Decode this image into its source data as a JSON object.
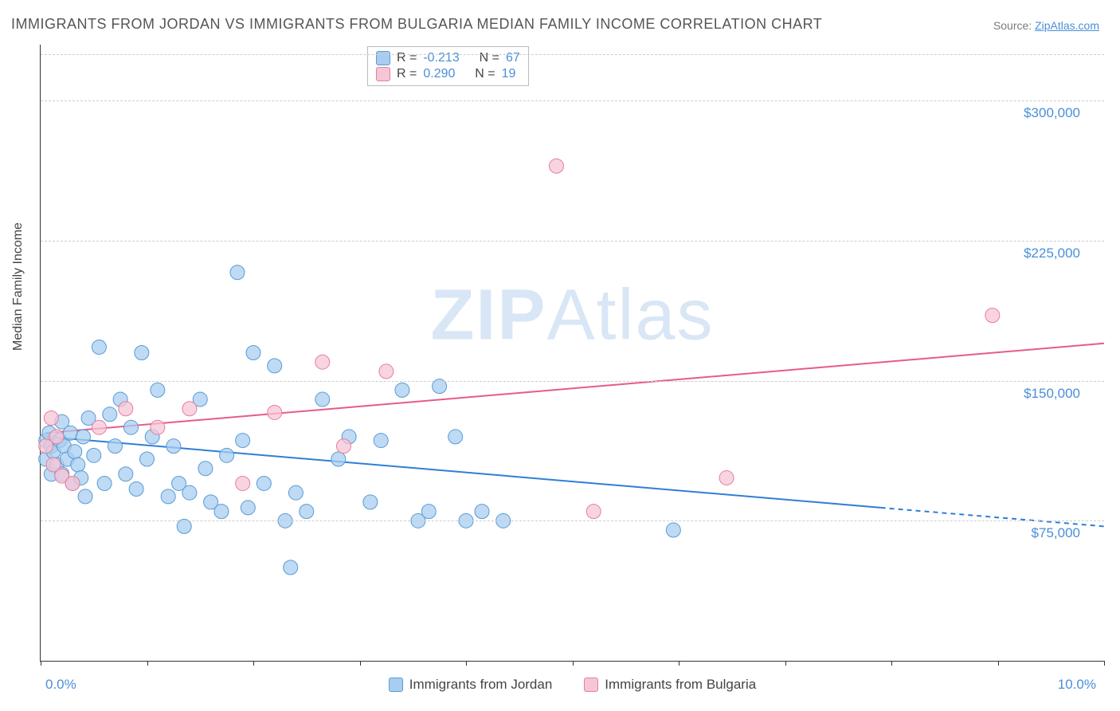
{
  "title": "IMMIGRANTS FROM JORDAN VS IMMIGRANTS FROM BULGARIA MEDIAN FAMILY INCOME CORRELATION CHART",
  "source_label": "Source: ",
  "source_link": "ZipAtlas.com",
  "y_axis_label": "Median Family Income",
  "watermark": {
    "bold": "ZIP",
    "rest": "Atlas"
  },
  "chart": {
    "type": "scatter-with-trend",
    "xlim": [
      0,
      10
    ],
    "ylim": [
      0,
      330000
    ],
    "x_ticks": [
      0,
      1,
      2,
      3,
      4,
      5,
      6,
      7,
      8,
      9,
      10
    ],
    "x_tick_labels": {
      "0": "0.0%",
      "10": "10.0%"
    },
    "y_gridlines": [
      75000,
      150000,
      225000,
      300000,
      325000
    ],
    "y_tick_labels": {
      "75000": "$75,000",
      "150000": "$150,000",
      "225000": "$225,000",
      "300000": "$300,000"
    },
    "background_color": "#ffffff",
    "grid_color": "#cccccc",
    "marker_radius": 9,
    "marker_stroke_width": 1,
    "series": [
      {
        "name": "Immigrants from Jordan",
        "fill_color": "#a8cdf0",
        "stroke_color": "#5a9bd4",
        "line_color": "#2f7ed8",
        "R": -0.213,
        "N": 67,
        "trend": {
          "x1": 0.05,
          "y1": 120000,
          "x2": 7.9,
          "y2": 82000
        },
        "trend_dash": {
          "x1": 7.9,
          "y1": 82000,
          "x2": 10.0,
          "y2": 72000
        },
        "points": [
          [
            0.05,
            118000
          ],
          [
            0.05,
            108000
          ],
          [
            0.1,
            115000
          ],
          [
            0.1,
            100000
          ],
          [
            0.08,
            122000
          ],
          [
            0.12,
            112000
          ],
          [
            0.15,
            105000
          ],
          [
            0.18,
            118000
          ],
          [
            0.2,
            128000
          ],
          [
            0.2,
            100000
          ],
          [
            0.22,
            115000
          ],
          [
            0.25,
            108000
          ],
          [
            0.28,
            122000
          ],
          [
            0.3,
            95000
          ],
          [
            0.32,
            112000
          ],
          [
            0.35,
            105000
          ],
          [
            0.38,
            98000
          ],
          [
            0.4,
            120000
          ],
          [
            0.45,
            130000
          ],
          [
            0.5,
            110000
          ],
          [
            0.55,
            168000
          ],
          [
            0.6,
            95000
          ],
          [
            0.65,
            132000
          ],
          [
            0.7,
            115000
          ],
          [
            0.75,
            140000
          ],
          [
            0.8,
            100000
          ],
          [
            0.85,
            125000
          ],
          [
            0.9,
            92000
          ],
          [
            0.95,
            165000
          ],
          [
            1.0,
            108000
          ],
          [
            1.05,
            120000
          ],
          [
            1.1,
            145000
          ],
          [
            1.2,
            88000
          ],
          [
            1.25,
            115000
          ],
          [
            1.3,
            95000
          ],
          [
            1.35,
            72000
          ],
          [
            1.4,
            90000
          ],
          [
            1.5,
            140000
          ],
          [
            1.55,
            103000
          ],
          [
            1.6,
            85000
          ],
          [
            1.7,
            80000
          ],
          [
            1.75,
            110000
          ],
          [
            1.85,
            208000
          ],
          [
            1.9,
            118000
          ],
          [
            1.95,
            82000
          ],
          [
            2.0,
            165000
          ],
          [
            2.1,
            95000
          ],
          [
            2.2,
            158000
          ],
          [
            2.3,
            75000
          ],
          [
            2.35,
            50000
          ],
          [
            2.4,
            90000
          ],
          [
            2.5,
            80000
          ],
          [
            2.65,
            140000
          ],
          [
            2.8,
            108000
          ],
          [
            2.9,
            120000
          ],
          [
            3.1,
            85000
          ],
          [
            3.2,
            118000
          ],
          [
            3.4,
            145000
          ],
          [
            3.55,
            75000
          ],
          [
            3.65,
            80000
          ],
          [
            3.75,
            147000
          ],
          [
            3.9,
            120000
          ],
          [
            4.0,
            75000
          ],
          [
            4.15,
            80000
          ],
          [
            4.35,
            75000
          ],
          [
            5.95,
            70000
          ],
          [
            0.42,
            88000
          ]
        ]
      },
      {
        "name": "Immigrants from Bulgaria",
        "fill_color": "#f5c6d5",
        "stroke_color": "#e77da0",
        "line_color": "#e75a8d",
        "R": 0.29,
        "N": 19,
        "trend": {
          "x1": 0.05,
          "y1": 122000,
          "x2": 10.0,
          "y2": 170000
        },
        "points": [
          [
            0.05,
            115000
          ],
          [
            0.1,
            130000
          ],
          [
            0.12,
            105000
          ],
          [
            0.15,
            120000
          ],
          [
            0.2,
            99000
          ],
          [
            0.3,
            95000
          ],
          [
            0.55,
            125000
          ],
          [
            0.8,
            135000
          ],
          [
            1.1,
            125000
          ],
          [
            1.4,
            135000
          ],
          [
            1.9,
            95000
          ],
          [
            2.2,
            133000
          ],
          [
            2.65,
            160000
          ],
          [
            2.85,
            115000
          ],
          [
            3.25,
            155000
          ],
          [
            4.85,
            265000
          ],
          [
            5.2,
            80000
          ],
          [
            6.45,
            98000
          ],
          [
            8.95,
            185000
          ]
        ]
      }
    ]
  },
  "legend_top_format": {
    "R_label": "R = ",
    "N_label": "N = "
  },
  "legend_bottom_labels": [
    "Immigrants from Jordan",
    "Immigrants from Bulgaria"
  ]
}
